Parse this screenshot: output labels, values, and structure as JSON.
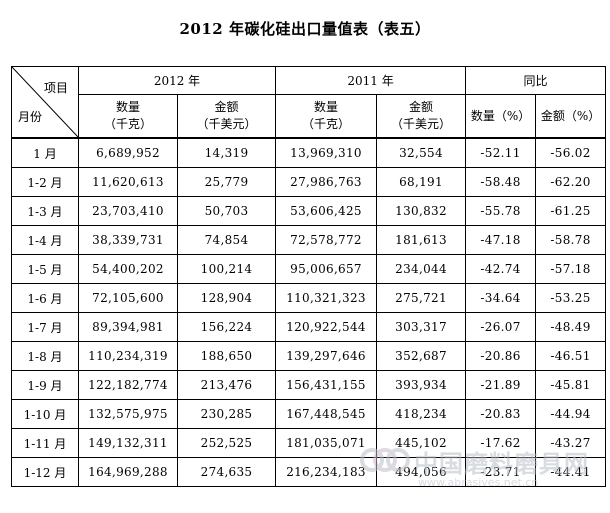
{
  "title": "2012 年碳化硅出口量值表（表五）",
  "corner": {
    "top": "项目",
    "bottom": "月份"
  },
  "groups": {
    "y2012": "2012 年",
    "y2011": "2011 年",
    "yoy": "同比"
  },
  "subheaders": {
    "qty_2012": [
      "数量",
      "（千克）"
    ],
    "amt_2012": [
      "金额",
      "（千美元）"
    ],
    "qty_2011": [
      "数量",
      "（千克）"
    ],
    "amt_2011": [
      "金额",
      "（千美元）"
    ],
    "qty_pct": "数量（%）",
    "amt_pct": "金额（%）"
  },
  "rows": [
    {
      "month": "1 月",
      "q2012": "6,689,952",
      "a2012": "14,319",
      "q2011": "13,969,310",
      "a2011": "32,554",
      "qp": "-52.11",
      "ap": "-56.02"
    },
    {
      "month": "1-2 月",
      "q2012": "11,620,613",
      "a2012": "25,779",
      "q2011": "27,986,763",
      "a2011": "68,191",
      "qp": "-58.48",
      "ap": "-62.20"
    },
    {
      "month": "1-3 月",
      "q2012": "23,703,410",
      "a2012": "50,703",
      "q2011": "53,606,425",
      "a2011": "130,832",
      "qp": "-55.78",
      "ap": "-61.25"
    },
    {
      "month": "1-4 月",
      "q2012": "38,339,731",
      "a2012": "74,854",
      "q2011": "72,578,772",
      "a2011": "181,613",
      "qp": "-47.18",
      "ap": "-58.78"
    },
    {
      "month": "1-5 月",
      "q2012": "54,400,202",
      "a2012": "100,214",
      "q2011": "95,006,657",
      "a2011": "234,044",
      "qp": "-42.74",
      "ap": "-57.18"
    },
    {
      "month": "1-6 月",
      "q2012": "72,105,600",
      "a2012": "128,904",
      "q2011": "110,321,323",
      "a2011": "275,721",
      "qp": "-34.64",
      "ap": "-53.25"
    },
    {
      "month": "1-7 月",
      "q2012": "89,394,981",
      "a2012": "156,224",
      "q2011": "120,922,544",
      "a2011": "303,317",
      "qp": "-26.07",
      "ap": "-48.49"
    },
    {
      "month": "1-8 月",
      "q2012": "110,234,319",
      "a2012": "188,650",
      "q2011": "139,297,646",
      "a2011": "352,687",
      "qp": "-20.86",
      "ap": "-46.51"
    },
    {
      "month": "1-9 月",
      "q2012": "122,182,774",
      "a2012": "213,476",
      "q2011": "156,431,155",
      "a2011": "393,934",
      "qp": "-21.89",
      "ap": "-45.81"
    },
    {
      "month": "1-10 月",
      "q2012": "132,575,975",
      "a2012": "230,285",
      "q2011": "167,448,545",
      "a2011": "418,234",
      "qp": "-20.83",
      "ap": "-44.94"
    },
    {
      "month": "1-11 月",
      "q2012": "149,132,311",
      "a2012": "252,525",
      "q2011": "181,035,071",
      "a2011": "445,102",
      "qp": "-17.62",
      "ap": "-43.27"
    },
    {
      "month": "1-12 月",
      "q2012": "164,969,288",
      "a2012": "274,635",
      "q2011": "216,234,183",
      "a2011": "494,056",
      "qp": "-23.71",
      "ap": "-44.41"
    }
  ],
  "watermark": {
    "text": "中国磨料磨具网",
    "url": "www.abrasives.net.cn",
    "color": "#b9bfc8"
  }
}
